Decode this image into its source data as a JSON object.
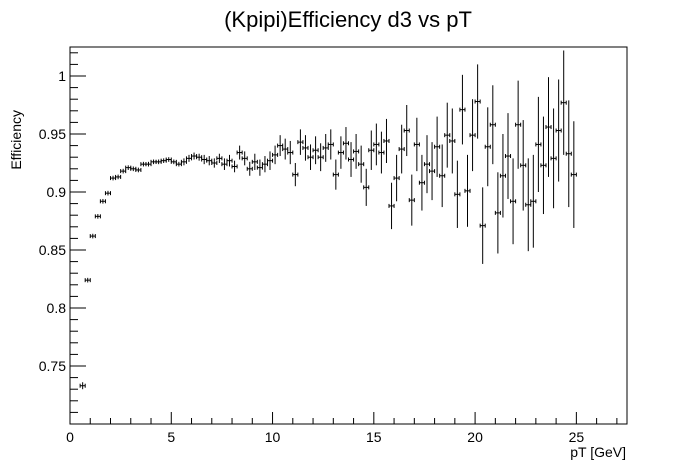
{
  "chart_data": {
    "type": "scatter",
    "title": "(Kpipi)Efficiency d3 vs pT",
    "xlabel": "pT [GeV]",
    "ylabel": "Efficiency",
    "xlim": [
      0,
      27.5
    ],
    "ylim": [
      0.7,
      1.025
    ],
    "x_ticks": [
      0,
      5,
      10,
      15,
      20,
      25
    ],
    "x_tick_labels": [
      "0",
      "5",
      "10",
      "15",
      "20",
      "25"
    ],
    "y_ticks": [
      0.75,
      0.8,
      0.85,
      0.9,
      0.95,
      1.0
    ],
    "y_tick_labels": [
      "0.75",
      "0.8",
      "0.85",
      "0.9",
      "0.95",
      "1"
    ],
    "grid": false,
    "series": [
      {
        "x": [
          0.625,
          0.875,
          1.125,
          1.375,
          1.625,
          1.875,
          2.125,
          2.375,
          2.625,
          2.875,
          3.125,
          3.375,
          3.625,
          3.875,
          4.125,
          4.375,
          4.625,
          4.875,
          5.125,
          5.375,
          5.625,
          5.875,
          6.125,
          6.375,
          6.625,
          6.875,
          7.125,
          7.375,
          7.625,
          7.875,
          8.125,
          8.375,
          8.625,
          8.875,
          9.125,
          9.375,
          9.625,
          9.875,
          10.125,
          10.375,
          10.625,
          10.875,
          11.125,
          11.375,
          11.625,
          11.875,
          12.125,
          12.375,
          12.625,
          12.875,
          13.125,
          13.375,
          13.625,
          13.875,
          14.125,
          14.375,
          14.625,
          14.875,
          15.125,
          15.375,
          15.625,
          15.875,
          16.125,
          16.375,
          16.625,
          16.875,
          17.125,
          17.375,
          17.625,
          17.875,
          18.125,
          18.375,
          18.625,
          18.875,
          19.125,
          19.375,
          19.625,
          19.875,
          20.125,
          20.375,
          20.625,
          20.875,
          21.125,
          21.375,
          21.625,
          21.875,
          22.125,
          22.375,
          22.625,
          22.875,
          23.125,
          23.375,
          23.625,
          23.875,
          24.125,
          24.375,
          24.625,
          24.875
        ],
        "y": [
          0.733,
          0.824,
          0.862,
          0.879,
          0.892,
          0.899,
          0.912,
          0.913,
          0.918,
          0.921,
          0.92,
          0.919,
          0.924,
          0.924,
          0.926,
          0.926,
          0.927,
          0.928,
          0.926,
          0.924,
          0.926,
          0.929,
          0.931,
          0.93,
          0.928,
          0.927,
          0.925,
          0.929,
          0.924,
          0.927,
          0.922,
          0.934,
          0.929,
          0.92,
          0.926,
          0.921,
          0.924,
          0.927,
          0.932,
          0.94,
          0.937,
          0.934,
          0.915,
          0.943,
          0.938,
          0.93,
          0.936,
          0.93,
          0.938,
          0.941,
          0.915,
          0.934,
          0.942,
          0.928,
          0.935,
          0.924,
          0.904,
          0.936,
          0.941,
          0.934,
          0.944,
          0.888,
          0.912,
          0.937,
          0.953,
          0.893,
          0.941,
          0.908,
          0.924,
          0.918,
          0.939,
          0.914,
          0.949,
          0.944,
          0.898,
          0.971,
          0.901,
          0.949,
          0.978,
          0.871,
          0.939,
          0.958,
          0.882,
          0.914,
          0.931,
          0.892,
          0.958,
          0.923,
          0.889,
          0.892,
          0.941,
          0.923,
          0.956,
          0.929,
          0.953,
          0.977,
          0.933,
          0.915
        ],
        "yerr": [
          0.003,
          0.002,
          0.002,
          0.002,
          0.002,
          0.002,
          0.002,
          0.002,
          0.002,
          0.002,
          0.002,
          0.002,
          0.002,
          0.002,
          0.002,
          0.002,
          0.002,
          0.002,
          0.002,
          0.002,
          0.003,
          0.003,
          0.003,
          0.003,
          0.004,
          0.004,
          0.004,
          0.004,
          0.005,
          0.005,
          0.005,
          0.006,
          0.006,
          0.006,
          0.007,
          0.007,
          0.007,
          0.008,
          0.008,
          0.009,
          0.009,
          0.01,
          0.01,
          0.011,
          0.011,
          0.011,
          0.012,
          0.012,
          0.012,
          0.013,
          0.013,
          0.014,
          0.014,
          0.015,
          0.015,
          0.016,
          0.016,
          0.017,
          0.018,
          0.018,
          0.019,
          0.02,
          0.02,
          0.021,
          0.022,
          0.022,
          0.023,
          0.024,
          0.025,
          0.025,
          0.026,
          0.027,
          0.028,
          0.028,
          0.029,
          0.03,
          0.031,
          0.031,
          0.032,
          0.033,
          0.034,
          0.034,
          0.035,
          0.036,
          0.037,
          0.037,
          0.038,
          0.039,
          0.04,
          0.04,
          0.041,
          0.042,
          0.043,
          0.043,
          0.044,
          0.045,
          0.046,
          0.046
        ],
        "xerr": 0.125
      }
    ]
  }
}
